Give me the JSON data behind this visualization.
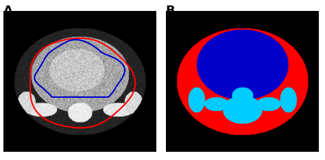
{
  "fig_width": 4.74,
  "fig_height": 2.34,
  "dpi": 100,
  "label_A": "A",
  "label_B": "B",
  "label_fontsize": 13,
  "label_fontweight": "bold",
  "bg_color": "#ffffff",
  "panel_bg": "#000000",
  "red_color": "#ff0000",
  "blue_color": "#0000cc",
  "cyan_color": "#00ccff"
}
